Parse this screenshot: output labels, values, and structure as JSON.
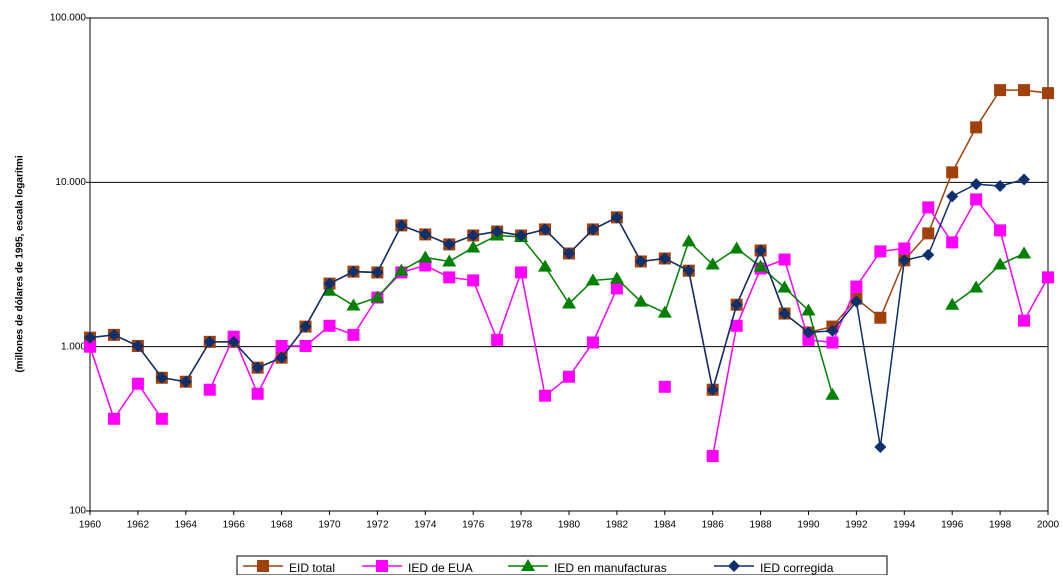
{
  "chart_data": {
    "type": "line",
    "y_label": "(millones de dólares de 1995, escala logarítmi",
    "x": [
      1960,
      1961,
      1962,
      1963,
      1964,
      1965,
      1966,
      1967,
      1968,
      1969,
      1970,
      1971,
      1972,
      1973,
      1974,
      1975,
      1976,
      1977,
      1978,
      1979,
      1980,
      1981,
      1982,
      1983,
      1984,
      1985,
      1986,
      1987,
      1988,
      1989,
      1990,
      1991,
      1992,
      1993,
      1994,
      1995,
      1996,
      1997,
      1998,
      1999,
      2000
    ],
    "xlim": [
      1960,
      2000
    ],
    "xticks": [
      1960,
      1962,
      1964,
      1966,
      1968,
      1970,
      1972,
      1974,
      1976,
      1978,
      1980,
      1982,
      1984,
      1986,
      1988,
      1990,
      1992,
      1994,
      1996,
      1998,
      2000
    ],
    "ylim": [
      100,
      100000
    ],
    "log_scale": true,
    "grid": true,
    "yticks": [
      100,
      {
        "value": 1000,
        "label": "1.000"
      },
      {
        "value": 10000,
        "label": "10.000"
      },
      {
        "value": 100000,
        "label": "100.000"
      }
    ],
    "legend": "bottom",
    "series": [
      {
        "name": "EID total",
        "color": "#a0410d",
        "marker": "square",
        "values": [
          1135,
          1180,
          1010,
          647,
          612,
          1070,
          1070,
          745,
          857,
          1325,
          2420,
          2860,
          2830,
          5470,
          4820,
          4190,
          4750,
          5020,
          4750,
          5170,
          3690,
          5170,
          6120,
          3300,
          3440,
          2900,
          547,
          1800,
          3850,
          1590,
          1220,
          1325,
          1960,
          1500,
          3350,
          4890,
          11500,
          21600,
          36400,
          36400,
          34900
        ]
      },
      {
        "name": "IED de EUA",
        "color": "#ff00ff",
        "marker": "square",
        "values": [
          1000,
          364,
          595,
          364,
          null,
          547,
          1150,
          517,
          1010,
          1010,
          1340,
          1180,
          1990,
          2830,
          3120,
          2640,
          2530,
          1100,
          2830,
          503,
          656,
          1060,
          2260,
          null,
          570,
          null,
          216,
          1340,
          2990,
          3390,
          1100,
          1060,
          2320,
          3800,
          3960,
          7040,
          4310,
          7870,
          5100,
          1440,
          2640
        ]
      },
      {
        "name": "IED en manufacturas",
        "color": "#008000",
        "marker": "triangle",
        "values": [
          null,
          null,
          null,
          null,
          null,
          null,
          null,
          null,
          null,
          null,
          2190,
          1780,
          1990,
          2900,
          3490,
          3300,
          4010,
          4750,
          4650,
          3070,
          1830,
          2530,
          2600,
          1880,
          1610,
          4370,
          3160,
          3960,
          3070,
          2290,
          1660,
          510,
          null,
          null,
          null,
          null,
          1800,
          2290,
          3160,
          3690,
          null
        ]
      },
      {
        "name": "IED corregida",
        "color": "#0d2f6b",
        "marker": "diamond",
        "values": [
          1135,
          1180,
          1010,
          647,
          612,
          1070,
          1070,
          745,
          857,
          1325,
          2420,
          2860,
          2830,
          5470,
          4820,
          4190,
          4750,
          5020,
          4750,
          5170,
          3690,
          5170,
          6120,
          3300,
          3440,
          2900,
          547,
          1800,
          3850,
          1590,
          1220,
          1250,
          1880,
          245,
          3350,
          3620,
          8220,
          9750,
          9500,
          10400,
          null
        ]
      }
    ]
  }
}
